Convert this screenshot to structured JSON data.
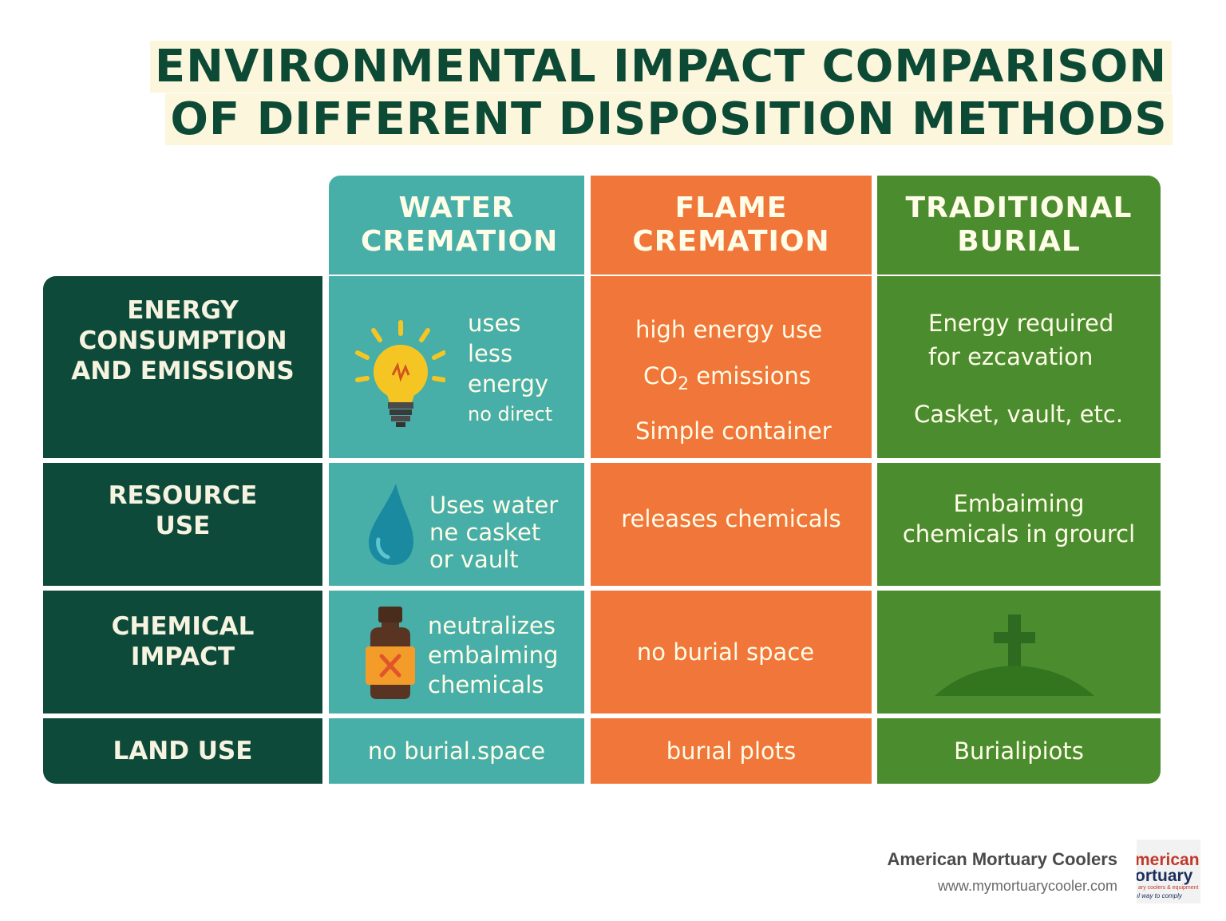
{
  "title": {
    "line1": "ENVIRONMENTAL IMPACT COMPARISON",
    "line2": "OF DIFFERENT DISPOSITION METHODS"
  },
  "columns": {
    "water": "WATER CREMATION",
    "flame": "FLAME CREMATION",
    "burial": "TRADITIONAL BURIAL"
  },
  "rows": {
    "energy": "ENERGY CONSUMPTION AND EMISSIONS",
    "resource": "RESOURCE USE",
    "chemical": "CHEMICAL IMPACT",
    "land": "LAND USE"
  },
  "cells": {
    "water_energy": [
      "uses",
      "less",
      "energy",
      "no direct"
    ],
    "flame_energy": [
      "high energy use",
      "CO",
      "2",
      " emissions",
      "Simple container"
    ],
    "burial_energy": [
      "Energy required",
      "for ezcavation",
      "Casket, vault, etc."
    ],
    "water_resource": [
      "Uses water",
      "ne casket",
      "or vault"
    ],
    "flame_resource": "releases chemicals",
    "burial_resource": [
      "Embaiming",
      "chemicals in grourcl"
    ],
    "water_chemical": [
      "neutralizes",
      "embalming",
      "chemicals"
    ],
    "flame_chemical": "no burial space",
    "water_land": "no burial.space",
    "flame_land": "burıal plots",
    "burial_land": "Burialipiots"
  },
  "icons": {
    "energy": "lightbulb-icon",
    "resource": "water-drop-icon",
    "chemical": "chemical-bottle-icon",
    "burial": "grave-cross-icon"
  },
  "colors": {
    "water": "#48aea8",
    "flame": "#f0763a",
    "burial": "#4a8c2e",
    "labels": "#0e4a3a",
    "title": "#0d4a35"
  },
  "footer": {
    "company": "American Mortuary Coolers",
    "url": "www.mymortuarycooler.com",
    "logo": {
      "line1": "merican",
      "line2": "ortuary",
      "line3": "ary coolers & equipment",
      "line4": "ıl way to comply"
    }
  }
}
